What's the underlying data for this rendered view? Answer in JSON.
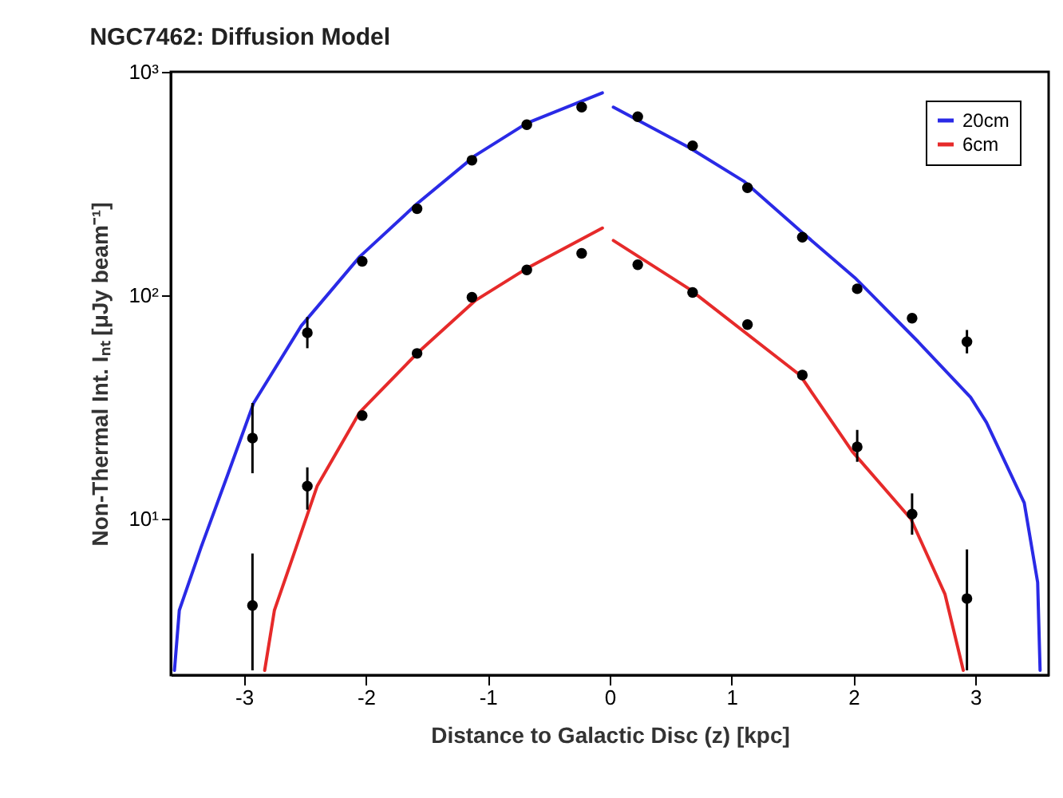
{
  "chart_data": {
    "type": "scatter",
    "title": "NGC7462: Diffusion Model",
    "xlabel": "Distance to Galactic Disc (z) [kpc]",
    "ylabel": "Non-Thermal Int. Iₙₜ [μJy beam⁻¹]",
    "xlim": [
      -3.6,
      3.6
    ],
    "xticks": [
      -3,
      -2,
      -1,
      0,
      1,
      2,
      3
    ],
    "ylim": [
      2,
      1000
    ],
    "yticks": [
      {
        "value": 10,
        "label": "10¹"
      },
      {
        "value": 100,
        "label": "10²"
      },
      {
        "value": 1000,
        "label": "10³"
      }
    ],
    "log": true,
    "legend": "top right",
    "series": [
      {
        "name": "20cm",
        "type": "line",
        "color": "#2a2ae6",
        "x": [
          -3.57,
          -3.53,
          -3.35,
          -3.14,
          -2.92,
          -2.53,
          -2.05,
          -1.58,
          -1.1,
          -0.68,
          -0.06,
          null,
          0.03,
          0.65,
          1.1,
          1.58,
          2.01,
          2.53,
          2.96,
          3.09,
          3.4,
          3.51,
          3.53
        ],
        "values": [
          2.1,
          3.9,
          7.5,
          15.4,
          33,
          73,
          149,
          257,
          423,
          589,
          805,
          null,
          695,
          459,
          324,
          191,
          120,
          62,
          35,
          27,
          11.8,
          5.2,
          2.1
        ]
      },
      {
        "name": "6cm",
        "type": "line",
        "color": "#e62a2a",
        "x": [
          -2.83,
          -2.75,
          -2.57,
          -2.4,
          -2.05,
          -1.58,
          -1.1,
          -0.68,
          -0.06,
          null,
          0.03,
          0.65,
          1.56,
          1.99,
          2.47,
          2.75,
          2.9
        ],
        "values": [
          2.1,
          3.9,
          7.5,
          14,
          30,
          55,
          95,
          132,
          200,
          null,
          176,
          107,
          44,
          20,
          10,
          4.6,
          2.1
        ]
      },
      {
        "type": "scatter",
        "marker": "circle",
        "color": "#000000",
        "x": [
          -2.93,
          -2.48,
          -2.03,
          -1.58,
          -1.13,
          -0.68,
          -0.23,
          0.23,
          0.68,
          1.13,
          1.58,
          2.03,
          2.48,
          2.93
        ],
        "values": [
          23,
          68,
          142,
          244,
          402,
          580,
          695,
          630,
          467,
          303,
          182,
          107,
          79,
          62
        ],
        "errors": [
          [
            16,
            33
          ],
          [
            58,
            80
          ],
          null,
          null,
          null,
          null,
          null,
          null,
          null,
          null,
          null,
          null,
          null,
          [
            55,
            70
          ]
        ]
      },
      {
        "type": "scatter",
        "marker": "circle",
        "color": "#000000",
        "x": [
          -2.93,
          -2.48,
          -2.03,
          -1.58,
          -1.13,
          -0.68,
          -0.23,
          0.23,
          0.68,
          1.13,
          1.58,
          2.03,
          2.48,
          2.93
        ],
        "values": [
          4.1,
          14,
          29,
          55,
          98,
          130,
          154,
          137,
          103,
          74,
          44,
          21,
          10.5,
          4.4
        ],
        "errors": [
          [
            2.1,
            7
          ],
          [
            11,
            17
          ],
          null,
          null,
          null,
          null,
          null,
          null,
          null,
          null,
          null,
          [
            18,
            25
          ],
          [
            8.5,
            13
          ],
          [
            2.1,
            7.3
          ]
        ]
      }
    ]
  }
}
